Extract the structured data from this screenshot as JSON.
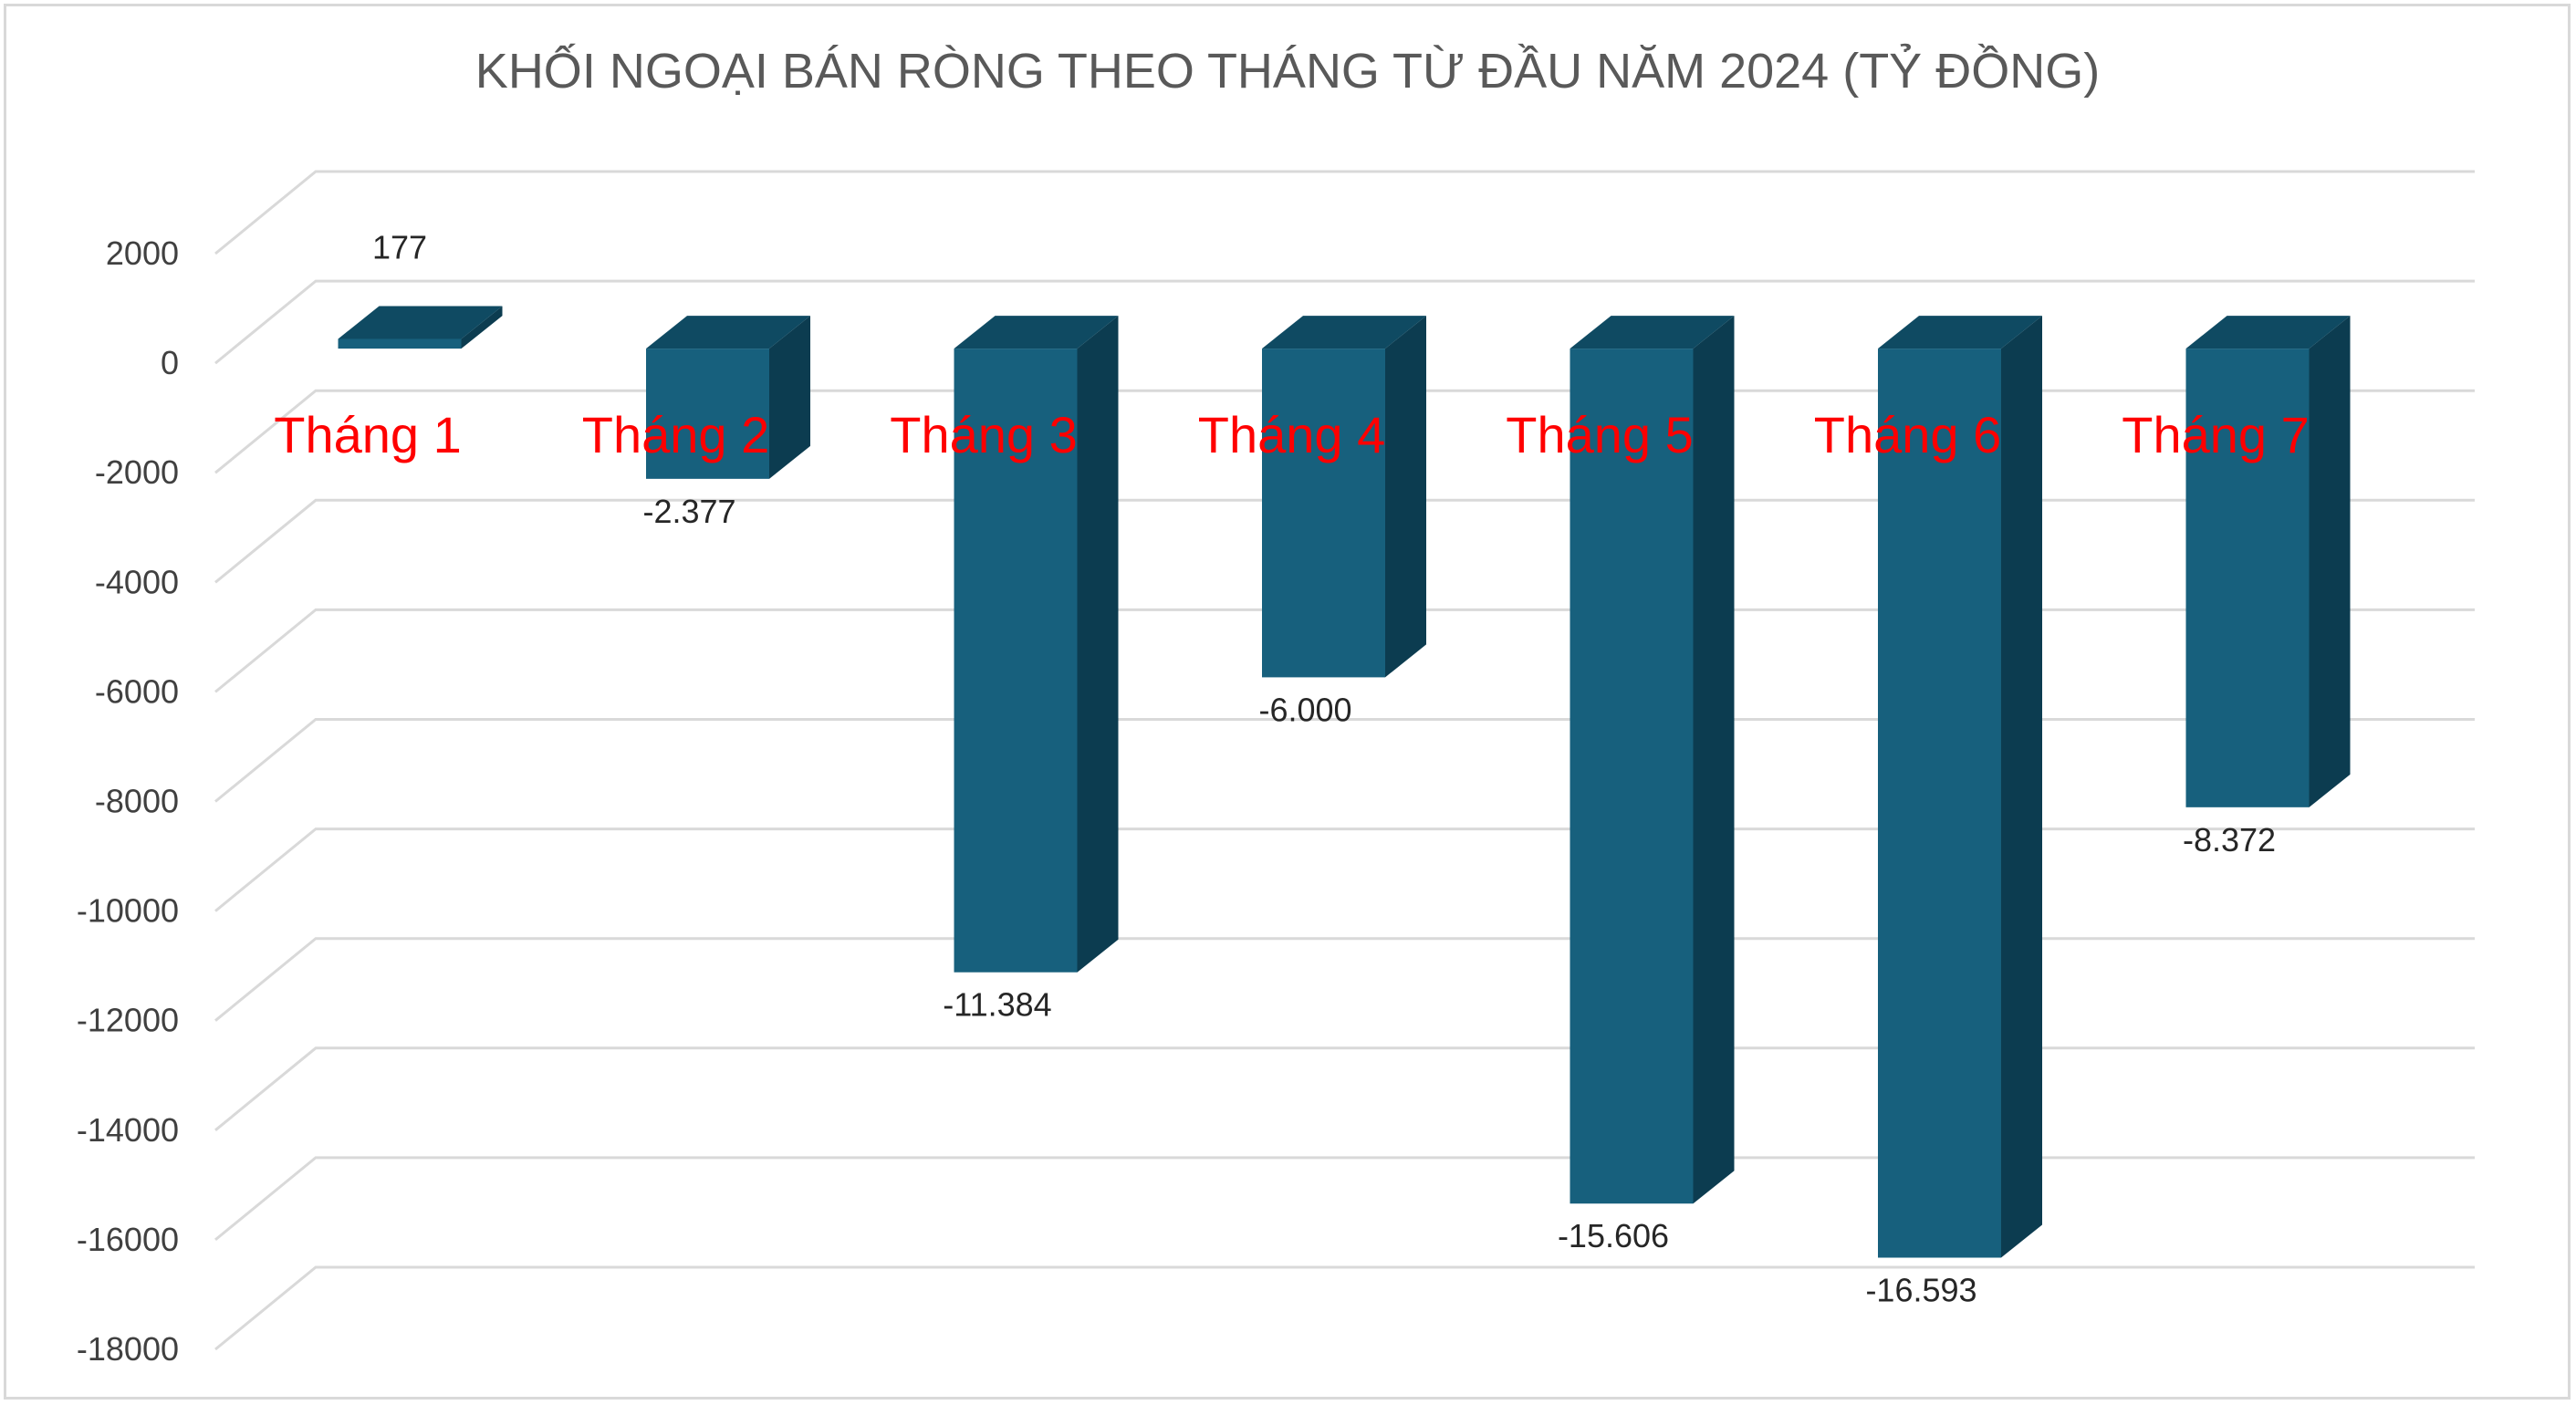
{
  "chart_data": {
    "type": "bar",
    "title": "KHỐI NGOẠI BÁN RÒNG THEO THÁNG TỪ ĐẦU NĂM 2024 (TỶ ĐỒNG)",
    "categories": [
      "Tháng 1",
      "Tháng 2",
      "Tháng 3",
      "Tháng 4",
      "Tháng 5",
      "Tháng 6",
      "Tháng 7"
    ],
    "values": [
      177,
      -2377,
      -11384,
      -6000,
      -15606,
      -16593,
      -8372
    ],
    "data_labels": [
      "177",
      "-2.377",
      "-11.384",
      "-6.000",
      "-15.606",
      "-16.593",
      "-8.372"
    ],
    "ylim": [
      -18000,
      2000
    ],
    "yticks": [
      "2000",
      "0",
      "-2000",
      "-4000",
      "-6000",
      "-8000",
      "-10000",
      "-12000",
      "-14000",
      "-16000",
      "-18000"
    ],
    "grid": true,
    "style": "3d-column",
    "colors": {
      "bar_front": "#17607d",
      "bar_side": "#0c3c50",
      "bar_top": "#0f4a62",
      "category_label": "#ff0000",
      "grid": "#d9d9d9"
    }
  }
}
